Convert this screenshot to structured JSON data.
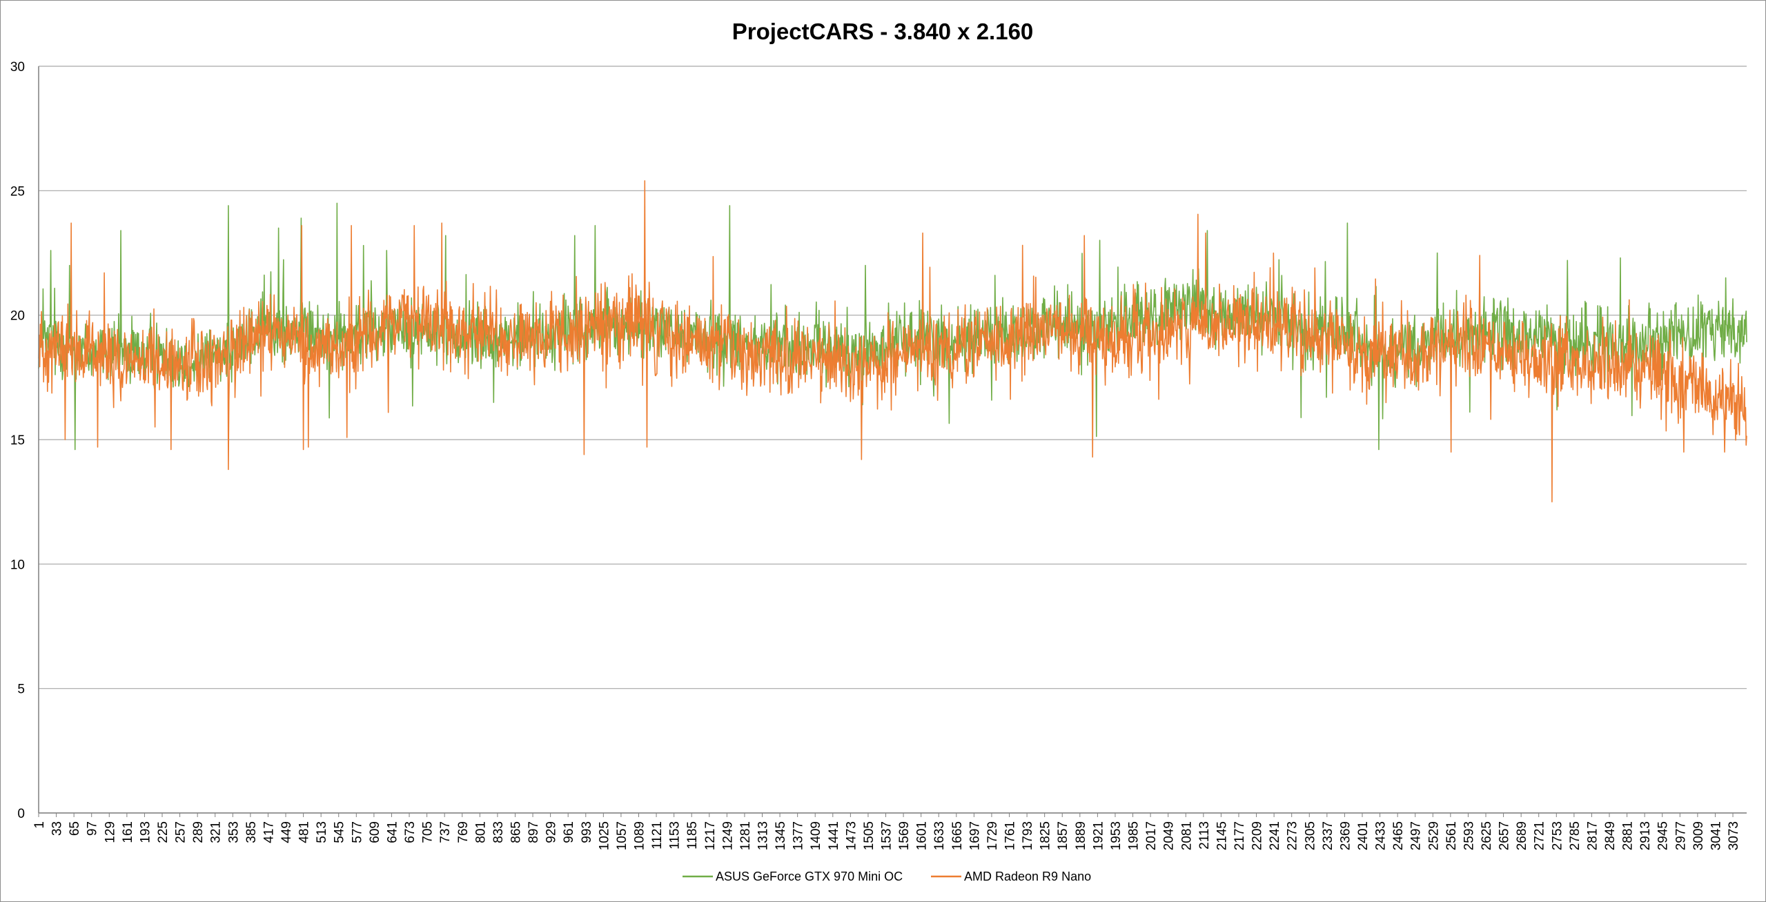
{
  "chart_data": {
    "type": "line",
    "title": "ProjectCARS - 3.840 x 2.160",
    "xlabel": "",
    "ylabel": "",
    "ylim": [
      0,
      30
    ],
    "y_ticks": [
      0,
      5,
      10,
      15,
      20,
      25,
      30
    ],
    "x_range": [
      1,
      3098
    ],
    "x_ticks": [
      1,
      33,
      65,
      97,
      129,
      161,
      193,
      225,
      257,
      289,
      321,
      353,
      385,
      417,
      449,
      481,
      513,
      545,
      577,
      609,
      641,
      673,
      705,
      737,
      769,
      801,
      833,
      865,
      897,
      929,
      961,
      993,
      1025,
      1057,
      1089,
      1121,
      1153,
      1185,
      1217,
      1249,
      1281,
      1313,
      1345,
      1377,
      1409,
      1441,
      1473,
      1505,
      1537,
      1569,
      1601,
      1633,
      1665,
      1697,
      1729,
      1761,
      1793,
      1825,
      1857,
      1889,
      1921,
      1953,
      1985,
      2017,
      2049,
      2081,
      2113,
      2145,
      2177,
      2209,
      2241,
      2273,
      2305,
      2337,
      2369,
      2401,
      2433,
      2465,
      2497,
      2529,
      2561,
      2593,
      2625,
      2657,
      2689,
      2721,
      2753,
      2785,
      2817,
      2849,
      2881,
      2913,
      2945,
      2977,
      3009,
      3041,
      3073
    ],
    "grid": "horizontal",
    "legend": "bottom",
    "series": [
      {
        "name": "ASUS GeForce GTX 970 Mini OC",
        "color": "#70ad47",
        "x": [
          1,
          51,
          101,
          151,
          201,
          251,
          301,
          351,
          401,
          451,
          501,
          551,
          601,
          651,
          701,
          751,
          801,
          851,
          901,
          951,
          1001,
          1051,
          1101,
          1151,
          1201,
          1251,
          1301,
          1351,
          1401,
          1451,
          1501,
          1551,
          1601,
          1651,
          1701,
          1751,
          1801,
          1851,
          1901,
          1951,
          2001,
          2051,
          2101,
          2151,
          2201,
          2251,
          2301,
          2351,
          2401,
          2451,
          2501,
          2551,
          2601,
          2651,
          2701,
          2751,
          2801,
          2851,
          2901,
          2951,
          3001,
          3051,
          3098
        ],
        "values": [
          19.0,
          18.8,
          18.6,
          18.5,
          18.4,
          18.3,
          18.2,
          18.8,
          19.3,
          19.5,
          19.2,
          19.0,
          19.3,
          19.6,
          19.4,
          19.2,
          19.1,
          19.0,
          19.1,
          19.3,
          19.4,
          19.6,
          19.5,
          19.3,
          19.1,
          19.0,
          18.9,
          18.8,
          18.7,
          18.6,
          18.6,
          18.9,
          19.2,
          18.9,
          19.1,
          19.3,
          19.4,
          19.5,
          19.4,
          19.6,
          19.9,
          20.2,
          20.3,
          20.1,
          19.9,
          19.8,
          19.6,
          19.4,
          18.8,
          18.5,
          18.7,
          19.0,
          19.2,
          19.2,
          19.1,
          19.0,
          18.9,
          19.0,
          19.1,
          19.2,
          19.2,
          19.4,
          19.5
        ],
        "noise": 1.0,
        "spikes_up": [
          [
            23,
            22.6
          ],
          [
            57,
            22.0
          ],
          [
            67,
            14.6
          ],
          [
            150,
            23.4
          ],
          [
            345,
            24.4
          ],
          [
            436,
            23.5
          ],
          [
            477,
            23.9
          ],
          [
            542,
            24.5
          ],
          [
            590,
            22.8
          ],
          [
            632,
            22.6
          ],
          [
            739,
            23.2
          ],
          [
            973,
            23.2
          ],
          [
            1010,
            23.6
          ],
          [
            1254,
            24.4
          ],
          [
            1500,
            22.0
          ],
          [
            2120,
            23.4
          ],
          [
            2374,
            23.7
          ],
          [
            2431,
            14.6
          ],
          [
            2537,
            22.5
          ],
          [
            2773,
            22.2
          ],
          [
            2869,
            22.3
          ],
          [
            3060,
            21.5
          ]
        ]
      },
      {
        "name": "AMD Radeon R9 Nano",
        "color": "#ed7d31",
        "x": [
          1,
          51,
          101,
          151,
          201,
          251,
          301,
          351,
          401,
          451,
          501,
          551,
          601,
          651,
          701,
          751,
          801,
          851,
          901,
          951,
          1001,
          1051,
          1101,
          1151,
          1201,
          1251,
          1301,
          1351,
          1401,
          1451,
          1501,
          1551,
          1601,
          1651,
          1701,
          1751,
          1801,
          1851,
          1901,
          1951,
          2001,
          2051,
          2101,
          2151,
          2201,
          2251,
          2301,
          2351,
          2401,
          2451,
          2501,
          2551,
          2601,
          2651,
          2701,
          2751,
          2801,
          2851,
          2901,
          2951,
          3001,
          3051,
          3098
        ],
        "values": [
          18.8,
          18.6,
          18.3,
          18.2,
          18.1,
          18.0,
          18.1,
          18.6,
          19.2,
          19.3,
          18.9,
          18.7,
          19.2,
          19.8,
          19.6,
          19.4,
          19.2,
          18.9,
          19.0,
          19.3,
          19.5,
          19.8,
          19.6,
          19.0,
          18.8,
          18.6,
          18.4,
          18.3,
          18.2,
          18.2,
          18.1,
          18.3,
          18.6,
          18.4,
          18.7,
          19.2,
          19.3,
          19.4,
          19.2,
          19.0,
          19.2,
          19.6,
          19.8,
          19.7,
          19.5,
          19.4,
          19.3,
          19.1,
          18.3,
          18.1,
          18.3,
          18.6,
          18.7,
          18.6,
          18.4,
          18.2,
          18.0,
          18.0,
          17.8,
          17.5,
          17.0,
          16.8,
          16.7
        ],
        "noise": 1.2,
        "spikes_up": [
          [
            60,
            23.7
          ],
          [
            49,
            15.0
          ],
          [
            108,
            14.7
          ],
          [
            345,
            13.8
          ],
          [
            478,
            23.6
          ],
          [
            481,
            14.6
          ],
          [
            490,
            14.7
          ],
          [
            568,
            23.6
          ],
          [
            682,
            23.6
          ],
          [
            732,
            23.7
          ],
          [
            990,
            14.4
          ],
          [
            1100,
            25.4
          ],
          [
            1104,
            14.7
          ],
          [
            1493,
            14.2
          ],
          [
            1604,
            23.3
          ],
          [
            1897,
            23.2
          ],
          [
            1912,
            14.3
          ],
          [
            2117,
            23.3
          ],
          [
            2562,
            14.5
          ],
          [
            2614,
            22.4
          ],
          [
            2745,
            12.5
          ],
          [
            2984,
            14.5
          ],
          [
            3058,
            14.5
          ]
        ]
      }
    ]
  }
}
